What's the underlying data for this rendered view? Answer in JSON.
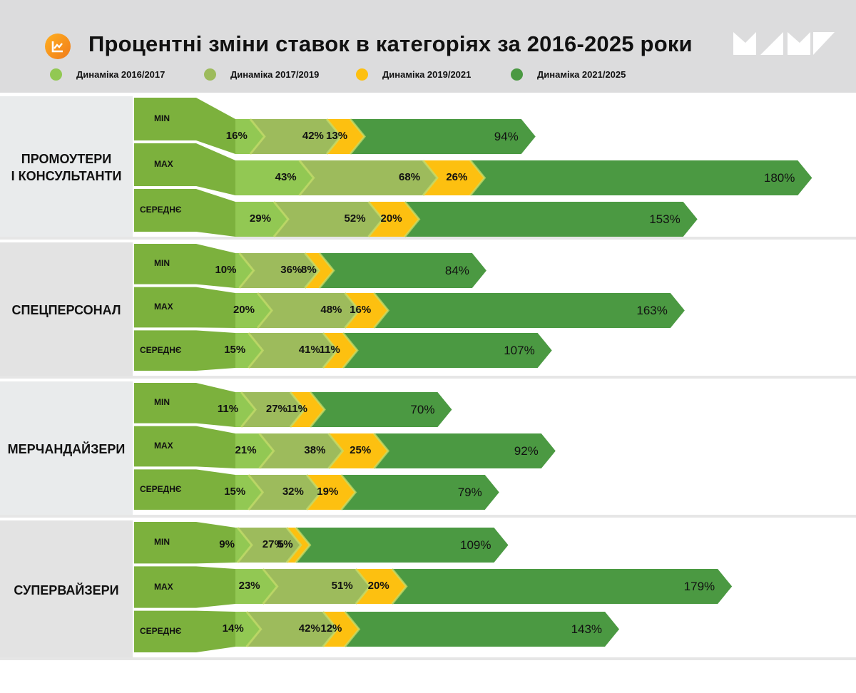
{
  "header": {
    "title": "Процентні зміни ставок в категоріях за 2016-2025 роки",
    "icon": "chart-trend-icon",
    "logo": "brand-logo-triangles"
  },
  "colors": {
    "header_bg": "#dcdcdd",
    "label_block": "#7cb13d",
    "d2016_2017": "#92c853",
    "d2017_2019": "#9dbb5c",
    "d2019_2021": "#fdc010",
    "d2021_2025": "#4b9942",
    "icon_orange": "#f58a1f"
  },
  "chart_data": {
    "type": "bar",
    "subtype": "stacked-horizontal-arrow",
    "title": "Процентні зміни ставок в категоріях за 2016-2025 роки",
    "legend": [
      {
        "name": "Динаміка 2016/2017",
        "color": "#92c853"
      },
      {
        "name": "Динаміка 2017/2019",
        "color": "#9dbb5c"
      },
      {
        "name": "Динаміка 2019/2021",
        "color": "#fdc010"
      },
      {
        "name": "Динаміка 2021/2025",
        "color": "#4b9942"
      }
    ],
    "legend_position": "top",
    "unit": "%",
    "categories": [
      {
        "name": "ПРОМОУТЕРИ\nІ КОНСУЛЬТАНТИ",
        "rows": [
          {
            "label": "MIN",
            "values": [
              16,
              42,
              13,
              94
            ]
          },
          {
            "label": "MAX",
            "values": [
              43,
              68,
              26,
              180
            ]
          },
          {
            "label": "СЕРЕДНЄ",
            "values": [
              29,
              52,
              20,
              153
            ]
          }
        ]
      },
      {
        "name": "СПЕЦПЕРСОНАЛ",
        "rows": [
          {
            "label": "MIN",
            "values": [
              10,
              36,
              8,
              84
            ]
          },
          {
            "label": "MAX",
            "values": [
              20,
              48,
              16,
              163
            ]
          },
          {
            "label": "СЕРЕДНЄ",
            "values": [
              15,
              41,
              11,
              107
            ]
          }
        ]
      },
      {
        "name": "МЕРЧАНДАЙЗЕРИ",
        "rows": [
          {
            "label": "MIN",
            "values": [
              11,
              27,
              11,
              70
            ]
          },
          {
            "label": "MAX",
            "values": [
              21,
              38,
              25,
              92
            ]
          },
          {
            "label": "СЕРЕДНЄ",
            "values": [
              15,
              32,
              19,
              79
            ]
          }
        ]
      },
      {
        "name": "СУПЕРВАЙЗЕРИ",
        "rows": [
          {
            "label": "MIN",
            "values": [
              9,
              27,
              5,
              109
            ]
          },
          {
            "label": "MAX",
            "values": [
              23,
              51,
              20,
              179
            ]
          },
          {
            "label": "СЕРЕДНЄ",
            "values": [
              14,
              42,
              12,
              143
            ]
          }
        ]
      }
    ]
  }
}
